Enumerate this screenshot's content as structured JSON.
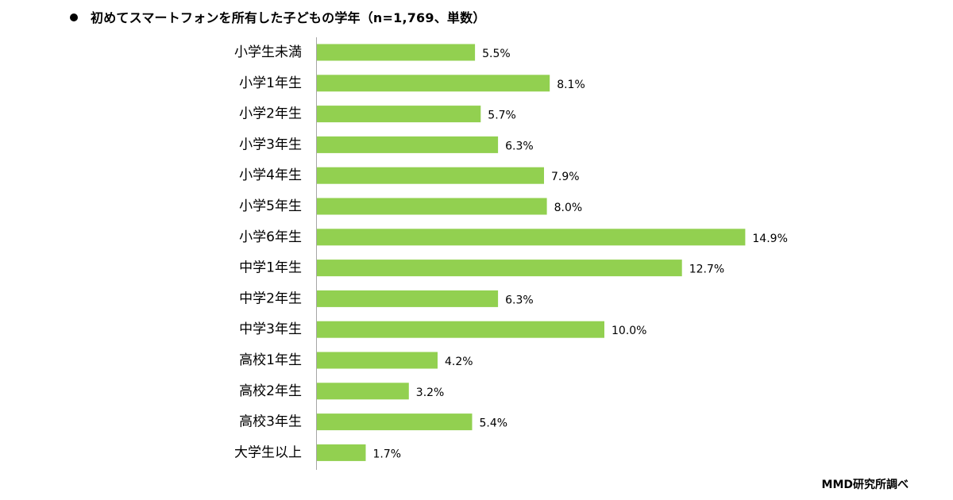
{
  "title": "初めてスマートフォンを所有した子どもの学年（n=1,769、単数）",
  "source": "MMD研究所調べ",
  "colors": {
    "bar": "#92D050",
    "axis": "#A6A6A6",
    "text": "#000000"
  },
  "chart_data": {
    "type": "bar",
    "orientation": "horizontal",
    "title": "初めてスマートフォンを所有した子どもの学年（n=1,769、単数）",
    "categories": [
      "小学生未満",
      "小学1年生",
      "小学2年生",
      "小学3年生",
      "小学4年生",
      "小学5年生",
      "小学6年生",
      "中学1年生",
      "中学2年生",
      "中学3年生",
      "高校1年生",
      "高校2年生",
      "高校3年生",
      "大学生以上"
    ],
    "values": [
      5.5,
      8.1,
      5.7,
      6.3,
      7.9,
      8.0,
      14.9,
      12.7,
      6.3,
      10.0,
      4.2,
      3.2,
      5.4,
      1.7
    ],
    "value_labels": [
      "5.5%",
      "8.1%",
      "5.7%",
      "6.3%",
      "7.9%",
      "8.0%",
      "14.9%",
      "12.7%",
      "6.3%",
      "10.0%",
      "4.2%",
      "3.2%",
      "5.4%",
      "1.7%"
    ],
    "unit": "%",
    "xlim": [
      0,
      15
    ],
    "xlabel": "",
    "ylabel": "",
    "grid": false,
    "legend": "none"
  }
}
